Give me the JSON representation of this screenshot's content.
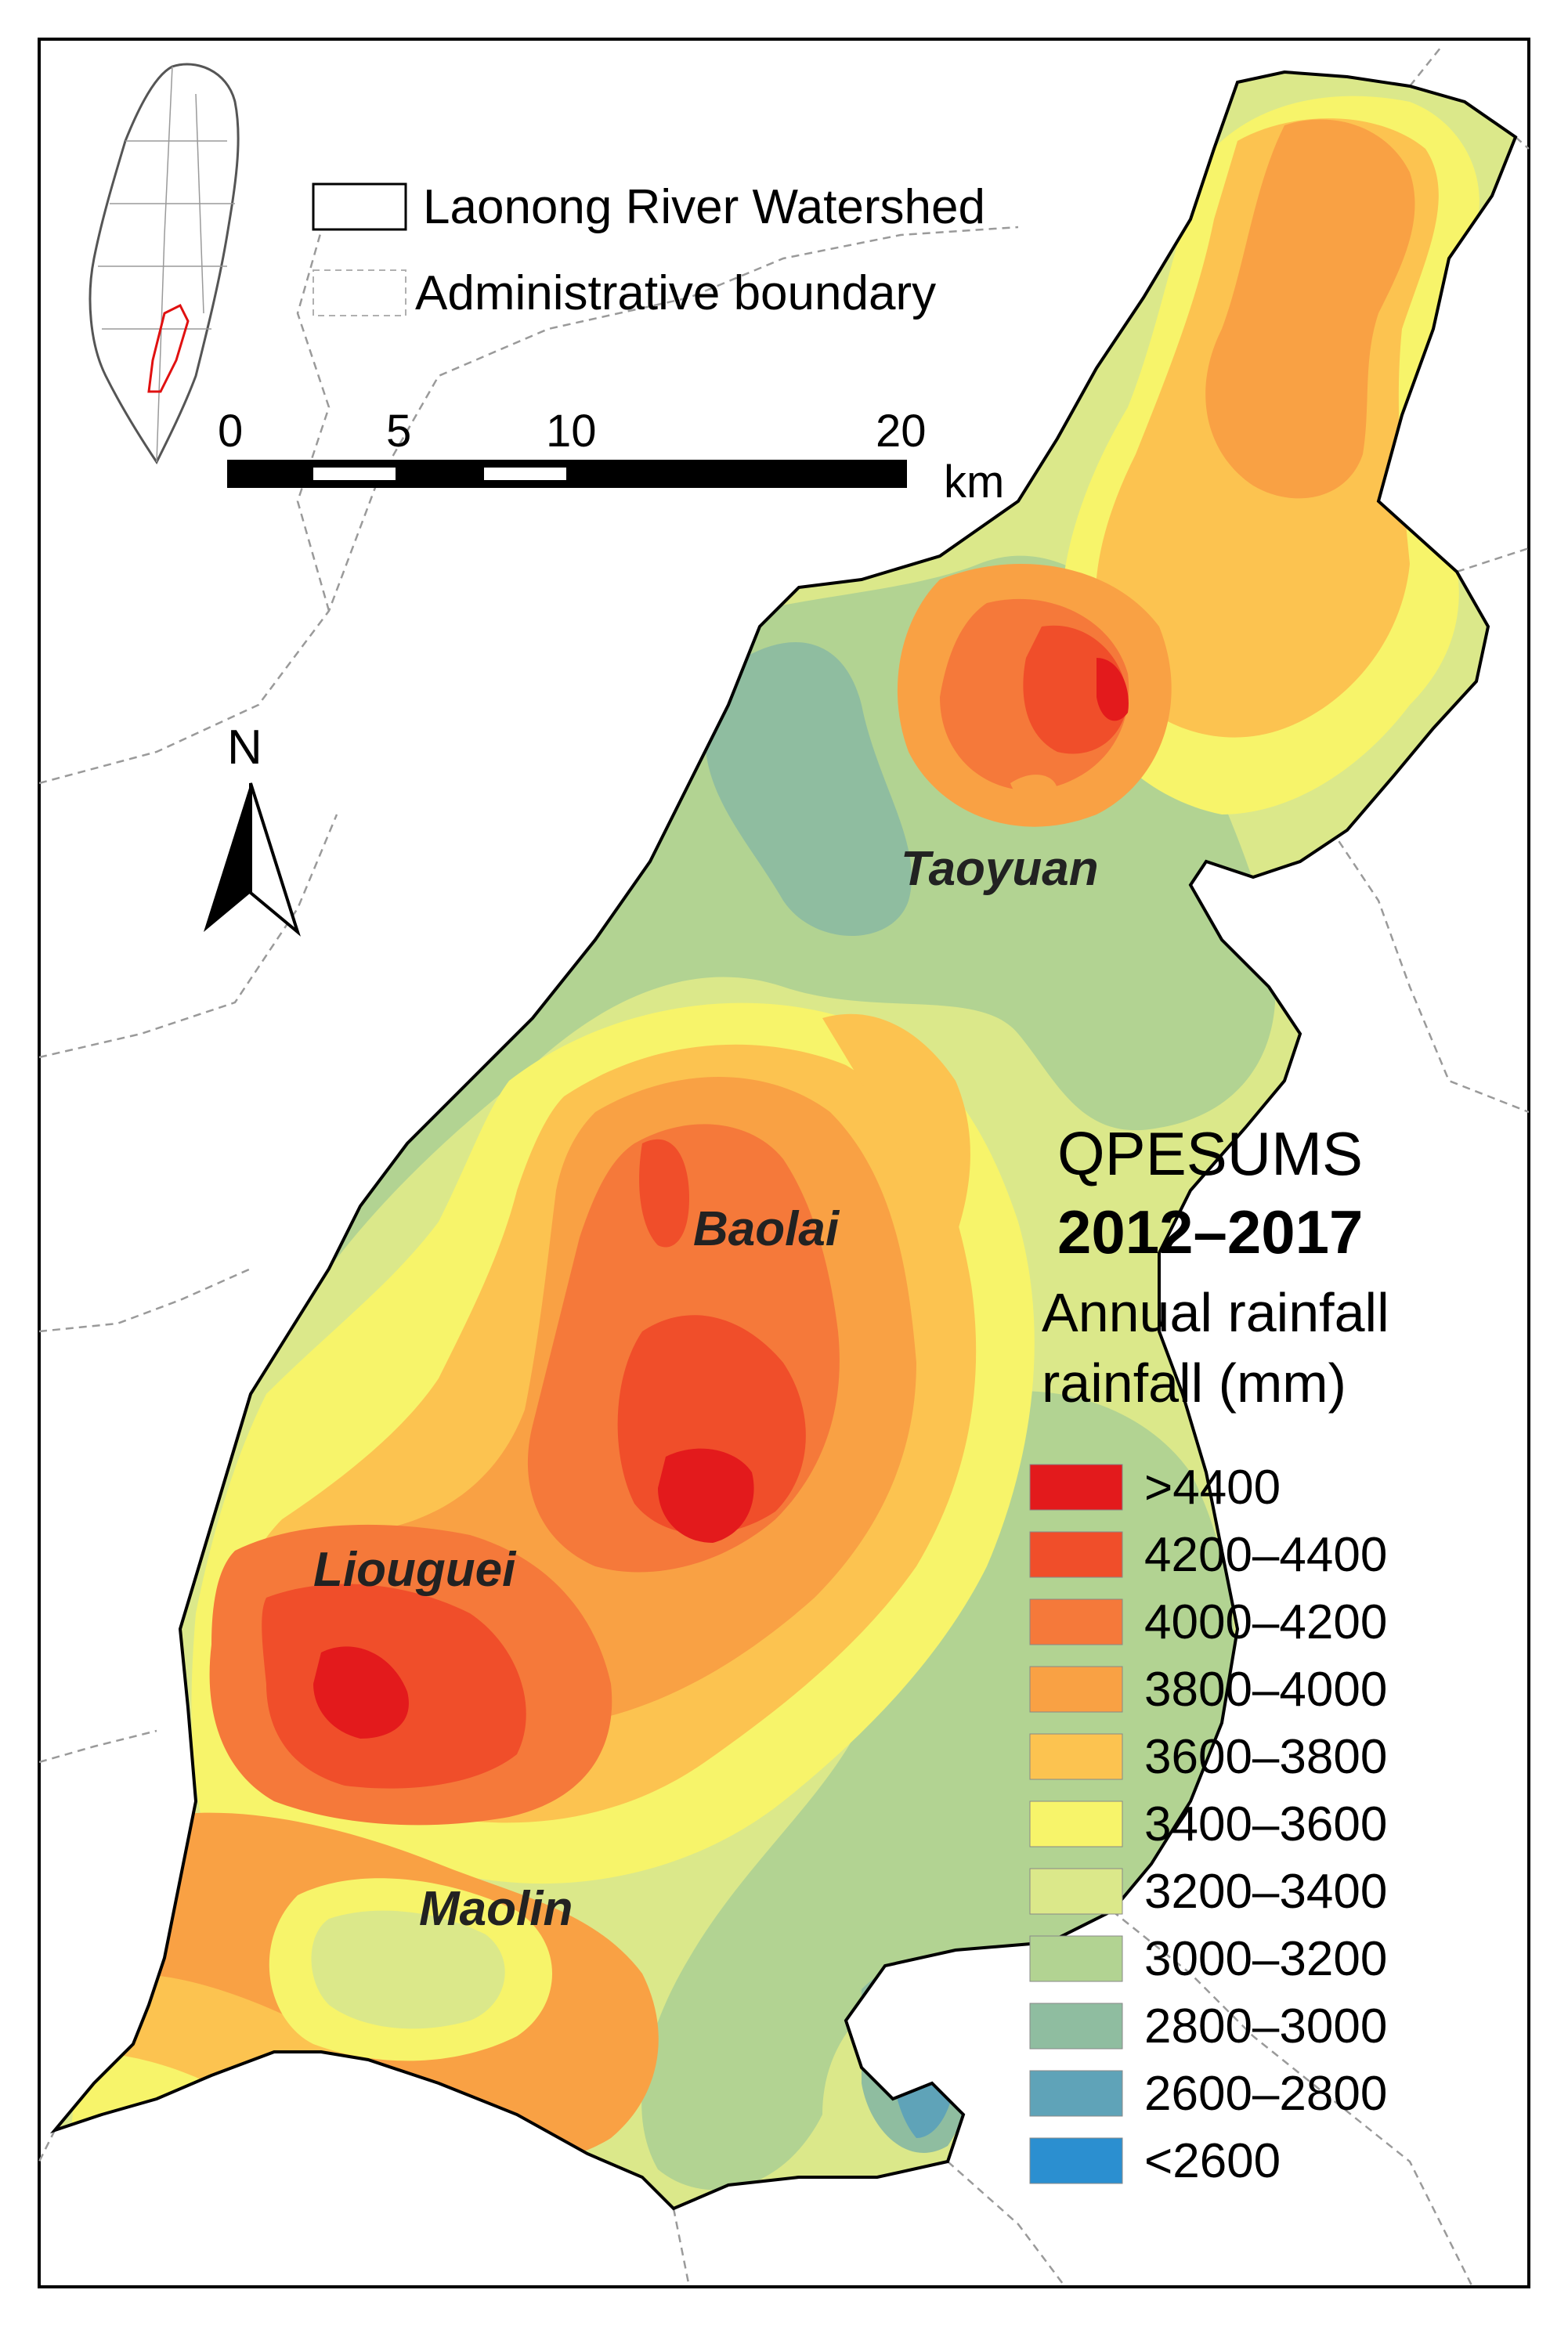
{
  "map": {
    "legend_watershed": "Laonong River Watershed",
    "legend_admin": "Administrative boundary",
    "scale_labels": [
      "0",
      "5",
      "10",
      "20"
    ],
    "scale_unit": "km",
    "north_label": "N",
    "title_line1": "QPESUMS",
    "title_line2": "2012–2017",
    "subtitle_line1": "Annual rainfall",
    "subtitle_line2": "rainfall (mm)",
    "places": {
      "taoyuan": "Taoyuan",
      "baolai": "Baolai",
      "liouguei": "Liouguei",
      "maolin": "Maolin"
    },
    "rainfall_classes": [
      {
        "label": ">4400",
        "color": "#e31a1c"
      },
      {
        "label": "4200–4400",
        "color": "#f04e2a"
      },
      {
        "label": "4000–4200",
        "color": "#f5793a"
      },
      {
        "label": "3800–4000",
        "color": "#f9a144"
      },
      {
        "label": "3600–3800",
        "color": "#fcc350"
      },
      {
        "label": "3400–3600",
        "color": "#f7f46a"
      },
      {
        "label": "3200–3400",
        "color": "#dbe88a"
      },
      {
        "label": "3000–3200",
        "color": "#b2d392"
      },
      {
        "label": "2800–3000",
        "color": "#8fbda0"
      },
      {
        "label": "2600–2800",
        "color": "#5fa3b8"
      },
      {
        "label": "<2600",
        "color": "#2b8fd0"
      }
    ],
    "colors": {
      "frame": "#000000",
      "watershed_outline": "#000000",
      "admin_boundary": "#9a9a9a",
      "inset_highlight": "#e01010"
    }
  }
}
